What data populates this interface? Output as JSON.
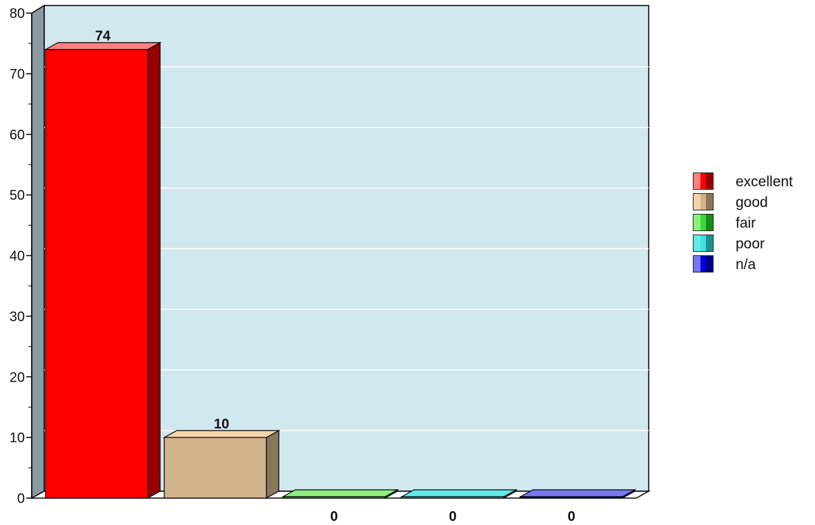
{
  "chart_data": {
    "type": "bar",
    "categories": [
      "excellent",
      "good",
      "fair",
      "poor",
      "n/a"
    ],
    "values": [
      74,
      10,
      0,
      0,
      0
    ],
    "data_labels": [
      "74",
      "10",
      "0",
      "0",
      "0"
    ],
    "ylim": [
      0,
      80
    ],
    "yticks": [
      "0",
      "10",
      "20",
      "30",
      "40",
      "50",
      "60",
      "70",
      "80"
    ],
    "grid": true,
    "legend_position": "right",
    "three_d": true,
    "title": "",
    "xlabel": "",
    "ylabel": "",
    "colors": {
      "excellent": {
        "face": "#ff0000",
        "top": "#ff8080",
        "side": "#990000"
      },
      "good": {
        "face": "#d2b48c",
        "top": "#f3d3a8",
        "side": "#8a7658"
      },
      "fair": {
        "face": "#33dd33",
        "top": "#90ee80",
        "side": "#1b8a1b"
      },
      "poor": {
        "face": "#40e0e0",
        "top": "#62eaea",
        "side": "#1e9090"
      },
      "n/a": {
        "face": "#0000dd",
        "top": "#7878ee",
        "side": "#000088"
      }
    },
    "plot_background": "#d2e8ef",
    "wall_color": "#8a9aa2"
  },
  "legend": {
    "items": [
      {
        "label": "excellent",
        "key": "excellent"
      },
      {
        "label": "good",
        "key": "good"
      },
      {
        "label": "fair",
        "key": "fair"
      },
      {
        "label": "poor",
        "key": "poor"
      },
      {
        "label": "n/a",
        "key": "n/a"
      }
    ]
  }
}
